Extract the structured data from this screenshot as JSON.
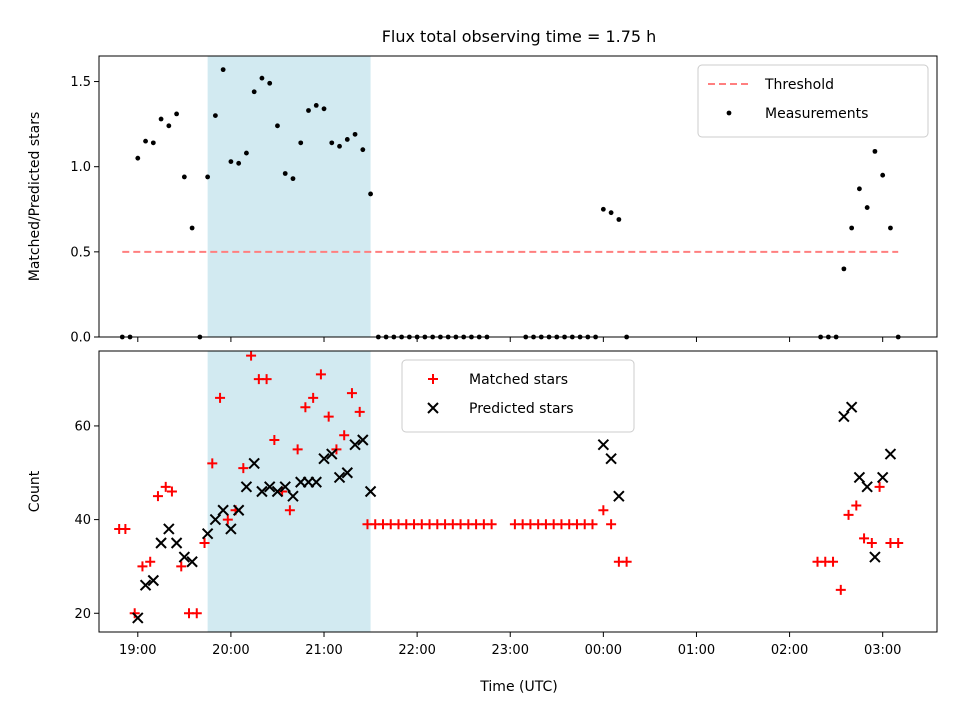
{
  "chart_data": {
    "title": "Flux total observing time = 1.75 h",
    "xlabel": "Time (UTC)",
    "xlim": [
      "18:35",
      "03:35"
    ],
    "xticks": [
      "19:00",
      "20:00",
      "21:00",
      "22:00",
      "23:00",
      "00:00",
      "01:00",
      "02:00",
      "03:00"
    ],
    "highlight_span": [
      "19:45",
      "21:30"
    ],
    "highlight_color": "#add8e6",
    "panels": [
      {
        "type": "scatter",
        "ylabel": "Matched/Predicted stars",
        "ylim": [
          0,
          1.65
        ],
        "yticks": [
          "0.0",
          "0.5",
          "1.0",
          "1.5"
        ],
        "legend_position": "upper right",
        "threshold": {
          "name": "Threshold",
          "value": 0.5,
          "x_range": [
            "18:50",
            "03:10"
          ],
          "color": "#ff7f7f",
          "style": "dashed"
        },
        "series": [
          {
            "name": "Measurements",
            "color": "#000000",
            "marker": "dot",
            "points": [
              [
                "18:50",
                0.0
              ],
              [
                "18:55",
                0.0
              ],
              [
                "19:00",
                1.05
              ],
              [
                "19:05",
                1.15
              ],
              [
                "19:10",
                1.14
              ],
              [
                "19:15",
                1.28
              ],
              [
                "19:20",
                1.24
              ],
              [
                "19:25",
                1.31
              ],
              [
                "19:30",
                0.94
              ],
              [
                "19:35",
                0.64
              ],
              [
                "19:40",
                0.0
              ],
              [
                "19:45",
                0.94
              ],
              [
                "19:50",
                1.3
              ],
              [
                "19:55",
                1.57
              ],
              [
                "20:00",
                1.03
              ],
              [
                "20:05",
                1.02
              ],
              [
                "20:10",
                1.08
              ],
              [
                "20:15",
                1.44
              ],
              [
                "20:20",
                1.52
              ],
              [
                "20:25",
                1.49
              ],
              [
                "20:30",
                1.24
              ],
              [
                "20:35",
                0.96
              ],
              [
                "20:40",
                0.93
              ],
              [
                "20:45",
                1.14
              ],
              [
                "20:50",
                1.33
              ],
              [
                "20:55",
                1.36
              ],
              [
                "21:00",
                1.34
              ],
              [
                "21:05",
                1.14
              ],
              [
                "21:10",
                1.12
              ],
              [
                "21:15",
                1.16
              ],
              [
                "21:20",
                1.19
              ],
              [
                "21:25",
                1.1
              ],
              [
                "21:30",
                0.84
              ],
              [
                "21:35",
                0.0
              ],
              [
                "21:40",
                0.0
              ],
              [
                "21:45",
                0.0
              ],
              [
                "21:50",
                0.0
              ],
              [
                "21:55",
                0.0
              ],
              [
                "22:00",
                0.0
              ],
              [
                "22:05",
                0.0
              ],
              [
                "22:10",
                0.0
              ],
              [
                "22:15",
                0.0
              ],
              [
                "22:20",
                0.0
              ],
              [
                "22:25",
                0.0
              ],
              [
                "22:30",
                0.0
              ],
              [
                "22:35",
                0.0
              ],
              [
                "22:40",
                0.0
              ],
              [
                "22:45",
                0.0
              ],
              [
                "23:10",
                0.0
              ],
              [
                "23:15",
                0.0
              ],
              [
                "23:20",
                0.0
              ],
              [
                "23:25",
                0.0
              ],
              [
                "23:30",
                0.0
              ],
              [
                "23:35",
                0.0
              ],
              [
                "23:40",
                0.0
              ],
              [
                "23:45",
                0.0
              ],
              [
                "23:50",
                0.0
              ],
              [
                "23:55",
                0.0
              ],
              [
                "00:00",
                0.75
              ],
              [
                "00:05",
                0.73
              ],
              [
                "00:10",
                0.69
              ],
              [
                "00:15",
                0.0
              ],
              [
                "02:20",
                0.0
              ],
              [
                "02:25",
                0.0
              ],
              [
                "02:30",
                0.0
              ],
              [
                "02:35",
                0.4
              ],
              [
                "02:40",
                0.64
              ],
              [
                "02:45",
                0.87
              ],
              [
                "02:50",
                0.76
              ],
              [
                "02:55",
                1.09
              ],
              [
                "03:00",
                0.95
              ],
              [
                "03:05",
                0.64
              ],
              [
                "03:10",
                0.0
              ]
            ]
          }
        ]
      },
      {
        "type": "scatter",
        "ylabel": "Count",
        "ylim": [
          16,
          76
        ],
        "yticks": [
          "20",
          "40",
          "60"
        ],
        "legend_position": "upper center",
        "series": [
          {
            "name": "Matched stars",
            "color": "#ff0000",
            "marker": "plus",
            "points": [
              [
                "18:48",
                38
              ],
              [
                "18:52",
                38
              ],
              [
                "18:58",
                20
              ],
              [
                "19:03",
                30
              ],
              [
                "19:08",
                31
              ],
              [
                "19:13",
                45
              ],
              [
                "19:18",
                47
              ],
              [
                "19:22",
                46
              ],
              [
                "19:28",
                30
              ],
              [
                "19:33",
                20
              ],
              [
                "19:38",
                20
              ],
              [
                "19:43",
                35
              ],
              [
                "19:48",
                52
              ],
              [
                "19:53",
                66
              ],
              [
                "19:58",
                40
              ],
              [
                "20:03",
                42
              ],
              [
                "20:08",
                51
              ],
              [
                "20:13",
                75
              ],
              [
                "20:18",
                70
              ],
              [
                "20:23",
                70
              ],
              [
                "20:28",
                57
              ],
              [
                "20:33",
                46
              ],
              [
                "20:38",
                42
              ],
              [
                "20:43",
                55
              ],
              [
                "20:48",
                64
              ],
              [
                "20:53",
                66
              ],
              [
                "20:58",
                71
              ],
              [
                "21:03",
                62
              ],
              [
                "21:08",
                55
              ],
              [
                "21:13",
                58
              ],
              [
                "21:18",
                67
              ],
              [
                "21:23",
                63
              ],
              [
                "21:28",
                39
              ],
              [
                "21:33",
                39
              ],
              [
                "21:38",
                39
              ],
              [
                "21:43",
                39
              ],
              [
                "21:48",
                39
              ],
              [
                "21:53",
                39
              ],
              [
                "21:58",
                39
              ],
              [
                "22:03",
                39
              ],
              [
                "22:08",
                39
              ],
              [
                "22:13",
                39
              ],
              [
                "22:18",
                39
              ],
              [
                "22:23",
                39
              ],
              [
                "22:28",
                39
              ],
              [
                "22:33",
                39
              ],
              [
                "22:38",
                39
              ],
              [
                "22:43",
                39
              ],
              [
                "22:48",
                39
              ],
              [
                "23:03",
                39
              ],
              [
                "23:08",
                39
              ],
              [
                "23:13",
                39
              ],
              [
                "23:18",
                39
              ],
              [
                "23:23",
                39
              ],
              [
                "23:28",
                39
              ],
              [
                "23:33",
                39
              ],
              [
                "23:38",
                39
              ],
              [
                "23:43",
                39
              ],
              [
                "23:48",
                39
              ],
              [
                "23:53",
                39
              ],
              [
                "00:00",
                42
              ],
              [
                "00:05",
                39
              ],
              [
                "00:10",
                31
              ],
              [
                "00:15",
                31
              ],
              [
                "02:18",
                31
              ],
              [
                "02:23",
                31
              ],
              [
                "02:28",
                31
              ],
              [
                "02:33",
                25
              ],
              [
                "02:38",
                41
              ],
              [
                "02:43",
                43
              ],
              [
                "02:48",
                36
              ],
              [
                "02:53",
                35
              ],
              [
                "02:58",
                47
              ],
              [
                "03:05",
                35
              ],
              [
                "03:10",
                35
              ]
            ]
          },
          {
            "name": "Predicted stars",
            "color": "#000000",
            "marker": "x",
            "points": [
              [
                "19:00",
                19
              ],
              [
                "19:05",
                26
              ],
              [
                "19:10",
                27
              ],
              [
                "19:15",
                35
              ],
              [
                "19:20",
                38
              ],
              [
                "19:25",
                35
              ],
              [
                "19:30",
                32
              ],
              [
                "19:35",
                31
              ],
              [
                "19:45",
                37
              ],
              [
                "19:50",
                40
              ],
              [
                "19:55",
                42
              ],
              [
                "20:00",
                38
              ],
              [
                "20:05",
                42
              ],
              [
                "20:10",
                47
              ],
              [
                "20:15",
                52
              ],
              [
                "20:20",
                46
              ],
              [
                "20:25",
                47
              ],
              [
                "20:30",
                46
              ],
              [
                "20:35",
                47
              ],
              [
                "20:40",
                45
              ],
              [
                "20:45",
                48
              ],
              [
                "20:50",
                48
              ],
              [
                "20:55",
                48
              ],
              [
                "21:00",
                53
              ],
              [
                "21:05",
                54
              ],
              [
                "21:10",
                49
              ],
              [
                "21:15",
                50
              ],
              [
                "21:20",
                56
              ],
              [
                "21:25",
                57
              ],
              [
                "21:30",
                46
              ],
              [
                "00:00",
                56
              ],
              [
                "00:05",
                53
              ],
              [
                "00:10",
                45
              ],
              [
                "02:35",
                62
              ],
              [
                "02:40",
                64
              ],
              [
                "02:45",
                49
              ],
              [
                "02:50",
                47
              ],
              [
                "02:55",
                32
              ],
              [
                "03:00",
                49
              ],
              [
                "03:05",
                54
              ]
            ]
          }
        ]
      }
    ]
  }
}
